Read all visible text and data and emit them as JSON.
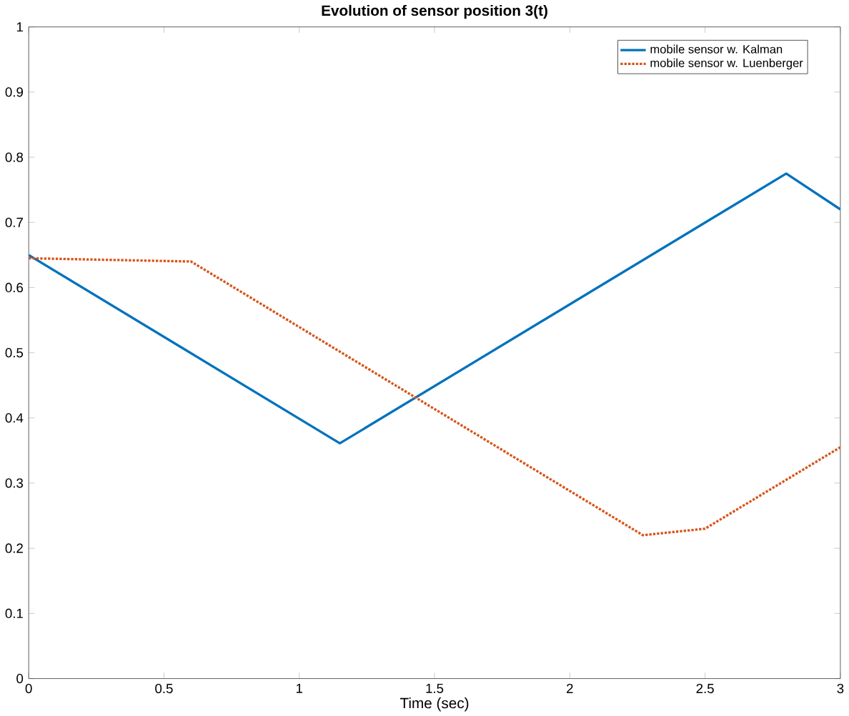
{
  "chart_data": {
    "type": "line",
    "title": "Evolution of sensor position 3(t)",
    "xlabel": "Time (sec)",
    "xlim": [
      0,
      3
    ],
    "xticks": [
      0,
      0.5,
      1,
      1.5,
      2,
      2.5,
      3
    ],
    "ylim": [
      0,
      1
    ],
    "yticks": [
      0,
      0.1,
      0.2,
      0.3,
      0.4,
      0.5,
      0.6,
      0.7,
      0.8,
      0.9,
      1
    ],
    "legend": "top right",
    "grid": false,
    "marker": "none",
    "series": [
      {
        "name": "mobile sensor w. Kalman",
        "color": "#0072bd",
        "line_style": "solid",
        "x": [
          0,
          1.15,
          2.8,
          3
        ],
        "values": [
          0.65,
          0.361,
          0.775,
          0.72
        ]
      },
      {
        "name": "mobile sensor w. Luenberger",
        "color": "#d95319",
        "line_style": "dotted",
        "x": [
          0,
          0.6,
          2.27,
          2.5,
          3
        ],
        "values": [
          0.645,
          0.64,
          0.22,
          0.23,
          0.355
        ]
      }
    ]
  }
}
